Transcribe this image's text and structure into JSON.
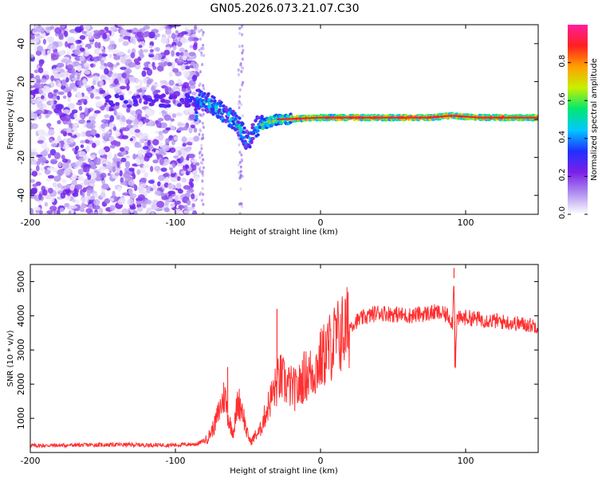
{
  "title": "GN05.2026.073.21.07.C30",
  "chart_data": [
    {
      "type": "heatmap",
      "name": "spectrogram",
      "title": "GN05.2026.073.21.07.C30",
      "xlabel": "Height of straight line (km)",
      "ylabel": "Frequency (Hz)",
      "xlim": [
        -200,
        150
      ],
      "ylim": [
        -50,
        50
      ],
      "xticks": [
        -200,
        -100,
        0,
        100
      ],
      "yticks": [
        -40,
        -20,
        0,
        20,
        40
      ],
      "colorbar": {
        "label": "Normalized spectral amplitude",
        "range": [
          0,
          1
        ],
        "ticks": [
          0,
          0.2,
          0.4,
          0.6,
          0.8
        ],
        "tick_labels": [
          "0.0",
          "0.2",
          "0.4",
          "0.6",
          "0.8"
        ],
        "colors": [
          "#ffffff",
          "#b090f0",
          "#7a20e8",
          "#2030ff",
          "#00c8ff",
          "#00e870",
          "#c8f000",
          "#ffa000",
          "#ff2020",
          "#ff1e9c"
        ]
      },
      "noise_region": {
        "x_range": [
          -200,
          -85
        ],
        "freq_range": [
          -50,
          50
        ],
        "typical_amplitude": 0.1
      },
      "carrier_track": [
        {
          "x": -85,
          "freq": 11
        },
        {
          "x": -78,
          "freq": 9
        },
        {
          "x": -70,
          "freq": 5
        },
        {
          "x": -62,
          "freq": 1
        },
        {
          "x": -55,
          "freq": -5
        },
        {
          "x": -50,
          "freq": -12
        },
        {
          "x": -45,
          "freq": -4
        },
        {
          "x": -38,
          "freq": -2
        },
        {
          "x": -30,
          "freq": 0
        },
        {
          "x": -15,
          "freq": 0.5
        },
        {
          "x": 0,
          "freq": 1
        },
        {
          "x": 25,
          "freq": 1
        },
        {
          "x": 50,
          "freq": 1
        },
        {
          "x": 75,
          "freq": 1
        },
        {
          "x": 90,
          "freq": 2
        },
        {
          "x": 110,
          "freq": 1
        },
        {
          "x": 130,
          "freq": 1
        },
        {
          "x": 150,
          "freq": 1
        }
      ]
    },
    {
      "type": "line",
      "name": "snr",
      "xlabel": "Height of straight line (km)",
      "ylabel": "SNR (10 * v/v)",
      "xlim": [
        -200,
        150
      ],
      "ylim": [
        0,
        5500
      ],
      "xticks": [
        -200,
        -100,
        0,
        100
      ],
      "yticks": [
        1000,
        2000,
        3000,
        4000,
        5000
      ],
      "color": "#ff3030",
      "series": [
        {
          "name": "SNR",
          "x": [
            -200,
            -180,
            -160,
            -140,
            -120,
            -100,
            -85,
            -78,
            -73,
            -70,
            -66,
            -63,
            -60,
            -57,
            -54,
            -51,
            -48,
            -45,
            -42,
            -39,
            -35,
            -31,
            -28,
            -24,
            -20,
            -16,
            -12,
            -8,
            -4,
            0,
            5,
            10,
            15,
            20,
            25,
            30,
            40,
            50,
            60,
            70,
            80,
            88,
            91,
            92,
            93,
            94,
            100,
            110,
            120,
            130,
            140,
            150
          ],
          "y": [
            200,
            210,
            220,
            230,
            220,
            220,
            250,
            400,
            800,
            1200,
            1700,
            900,
            600,
            1500,
            1300,
            600,
            300,
            500,
            600,
            1000,
            1500,
            1900,
            2200,
            2000,
            1900,
            1800,
            2200,
            2300,
            2400,
            2700,
            3000,
            3300,
            3500,
            3700,
            3850,
            3950,
            4100,
            4050,
            4000,
            4050,
            4100,
            4000,
            3800,
            5100,
            2600,
            3900,
            3950,
            3900,
            3850,
            3800,
            3750,
            3700
          ]
        }
      ],
      "spikes": [
        {
          "x": -64,
          "y": 2500
        },
        {
          "x": -30,
          "y": 4200
        },
        {
          "x": 92,
          "y": 5400
        },
        {
          "x": 92.5,
          "y": 2500
        }
      ]
    }
  ]
}
